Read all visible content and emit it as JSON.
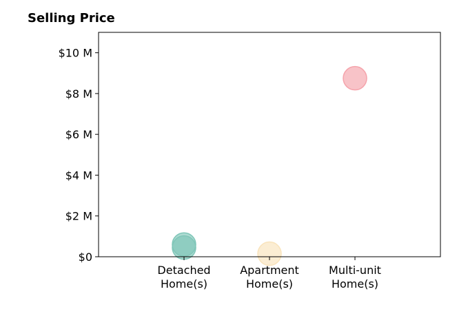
{
  "chart_data": {
    "type": "scatter",
    "title": "Selling Price",
    "xlabel": "",
    "ylabel": "",
    "categories": [
      "Detached\nHome(s)",
      "Apartment\nHome(s)",
      "Multi-unit\nHome(s)"
    ],
    "xlim": [
      -1,
      3
    ],
    "ylim": [
      0,
      11000000
    ],
    "y_ticks": [
      0,
      2000000,
      4000000,
      6000000,
      8000000,
      10000000
    ],
    "y_tick_labels": [
      "$0",
      "$2 M",
      "$4 M",
      "$6 M",
      "$8 M",
      "$10 M"
    ],
    "grid": false,
    "series": [
      {
        "category_index": 0,
        "color": "#7fc6b8",
        "values": [
          600000,
          450000
        ]
      },
      {
        "category_index": 1,
        "color": "#f9e3bb",
        "values": [
          150000
        ]
      },
      {
        "category_index": 2,
        "color": "#f5a3ab",
        "values": [
          8750000
        ]
      }
    ]
  }
}
